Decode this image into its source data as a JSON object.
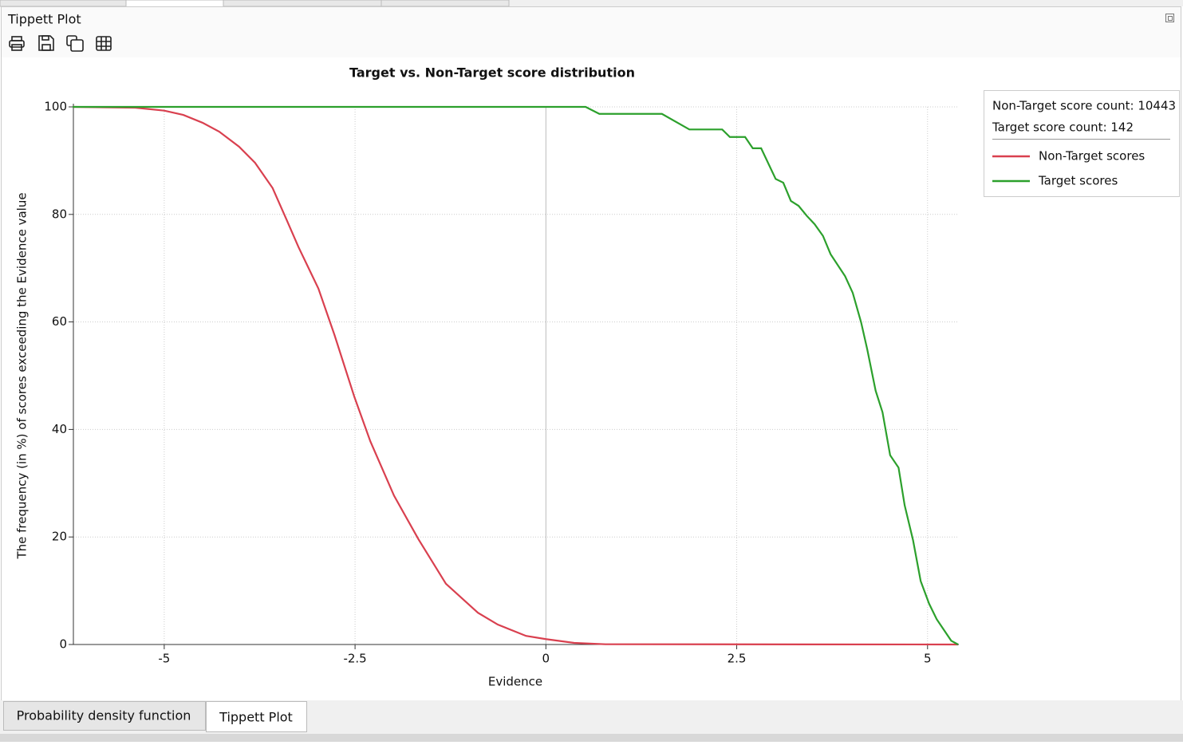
{
  "panel": {
    "title": "Tippett Plot"
  },
  "tabs": [
    "Probability density function",
    "Tippett Plot"
  ],
  "chart_data": {
    "type": "line",
    "title": "Target vs. Non-Target score distribution",
    "x_label": "Evidence",
    "y_label": "The frequency (in %) of scores exceeding the Evidence value",
    "xlim": [
      -6.19,
      5.41
    ],
    "ylim": [
      0,
      100
    ],
    "xticks": [
      -5,
      -2.5,
      0,
      2.5,
      5
    ],
    "yticks": [
      0,
      20,
      40,
      60,
      80,
      100
    ],
    "grid": true,
    "legend_position": "right",
    "legend_info": [
      "Non-Target score count: 10443",
      "Target score count: 142"
    ],
    "series": [
      {
        "name": "Non-Target scores",
        "color": "#d9404f",
        "x": [
          -6.2,
          -5.38,
          -5.0,
          -4.75,
          -4.49,
          -4.28,
          -4.02,
          -3.81,
          -3.58,
          -3.4,
          -3.24,
          -2.98,
          -2.77,
          -2.51,
          -2.3,
          -1.99,
          -1.67,
          -1.31,
          -0.89,
          -0.63,
          -0.26,
          0,
          0.37,
          0.78,
          5.4
        ],
        "values": [
          100,
          99.85,
          99.3,
          98.5,
          97.0,
          95.4,
          92.6,
          89.6,
          84.9,
          79.1,
          73.9,
          66.2,
          57.6,
          46.1,
          37.8,
          27.7,
          19.6,
          11.3,
          5.9,
          3.7,
          1.6,
          1.0,
          0.3,
          0.05,
          0
        ]
      },
      {
        "name": "Target scores",
        "color": "#2ca02c",
        "x": [
          -6.2,
          0.52,
          0.7,
          1.52,
          1.88,
          2.31,
          2.41,
          2.61,
          2.71,
          2.82,
          3.01,
          3.11,
          3.21,
          3.31,
          3.42,
          3.52,
          3.63,
          3.73,
          3.92,
          4.02,
          4.13,
          4.21,
          4.32,
          4.41,
          4.51,
          4.62,
          4.7,
          4.81,
          4.91,
          5.02,
          5.12,
          5.31,
          5.4
        ],
        "values": [
          100,
          100,
          98.7,
          98.7,
          95.8,
          95.8,
          94.4,
          94.4,
          92.3,
          92.3,
          86.6,
          85.9,
          82.5,
          81.6,
          79.7,
          78.2,
          76.0,
          72.6,
          68.5,
          65.4,
          59.9,
          54.9,
          47.2,
          43.2,
          35.2,
          32.9,
          25.9,
          19.4,
          11.8,
          7.6,
          4.7,
          0.7,
          0
        ]
      }
    ]
  }
}
